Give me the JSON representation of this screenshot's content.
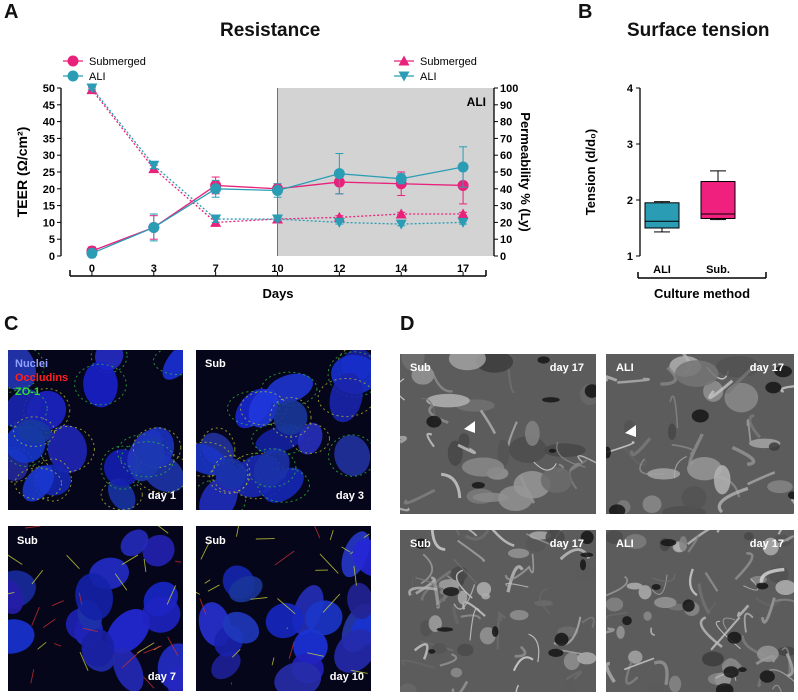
{
  "panels": {
    "A": {
      "letter": "A",
      "title": "Resistance"
    },
    "B": {
      "letter": "B",
      "title": "Surface tension"
    },
    "C": {
      "letter": "C"
    },
    "D": {
      "letter": "D"
    }
  },
  "chart_data": [
    {
      "type": "line",
      "title": "Resistance",
      "xlabel": "Days",
      "ylabel": "TEER (Ω/cm²)",
      "ylabel_right": "Permeability % (Ly)",
      "categories": [
        "0",
        "3",
        "7",
        "10",
        "12",
        "14",
        "17"
      ],
      "ylim": [
        0,
        50
      ],
      "ylim_right": [
        0,
        100
      ],
      "yticks": [
        0,
        5,
        10,
        15,
        20,
        25,
        30,
        35,
        40,
        45,
        50
      ],
      "yticks_right": [
        0,
        10,
        20,
        30,
        40,
        50,
        60,
        70,
        80,
        90,
        100
      ],
      "shaded_region": {
        "from": "10",
        "to": "17",
        "label": "ALI",
        "color": "#d3d3d3"
      },
      "series": [
        {
          "name": "Submerged",
          "axis": "left",
          "marker": "circle",
          "line": "solid",
          "color": "#e8217a",
          "values": [
            1.5,
            8.5,
            21,
            20,
            22,
            21.5,
            21
          ],
          "errors": [
            1.2,
            3.5,
            2.5,
            1.5,
            3.5,
            3.5,
            5.5
          ]
        },
        {
          "name": "ALI",
          "axis": "left",
          "marker": "circle",
          "line": "solid",
          "color": "#2a9db5",
          "values": [
            0.8,
            8.5,
            20,
            19.5,
            24.5,
            23,
            26.5
          ],
          "errors": [
            1,
            4,
            2.5,
            2,
            6,
            1.5,
            6
          ]
        },
        {
          "name": "Submerged",
          "axis": "right",
          "marker": "triangle-up",
          "line": "dotted",
          "color": "#e8217a",
          "values": [
            99,
            52,
            20,
            22,
            23,
            25,
            25
          ],
          "errors": [
            1,
            2,
            2,
            1,
            1,
            1,
            1
          ]
        },
        {
          "name": "ALI",
          "axis": "right",
          "marker": "triangle-down",
          "line": "dotted",
          "color": "#2a9db5",
          "values": [
            100,
            54,
            22,
            22,
            20,
            19,
            20
          ],
          "errors": [
            1,
            2,
            2,
            1,
            1,
            1,
            1
          ]
        }
      ]
    },
    {
      "type": "box",
      "title": "Surface tension",
      "xlabel": "Culture method",
      "ylabel": "Tension (d/d₀)",
      "categories": [
        "ALI",
        "Sub."
      ],
      "ylim": [
        1,
        4
      ],
      "yticks": [
        1,
        2,
        3,
        4
      ],
      "boxes": [
        {
          "name": "ALI",
          "min": 1.43,
          "q1": 1.5,
          "median": 1.62,
          "q3": 1.95,
          "max": 1.97,
          "color": "#2a9db5"
        },
        {
          "name": "Sub.",
          "min": 1.65,
          "q1": 1.67,
          "median": 1.75,
          "q3": 2.33,
          "max": 2.52,
          "color": "#f0217e"
        }
      ]
    }
  ],
  "legend": {
    "left": [
      {
        "label": "Submerged",
        "marker": "circle",
        "color": "#e8217a"
      },
      {
        "label": "ALI",
        "marker": "circle",
        "color": "#2a9db5"
      }
    ],
    "right": [
      {
        "label": "Submerged",
        "marker": "triangle-up",
        "color": "#e8217a"
      },
      {
        "label": "ALI",
        "marker": "triangle-down",
        "color": "#2a9db5"
      }
    ]
  },
  "micrographs_C": [
    {
      "id": "c1",
      "tag": "",
      "day": "day 1",
      "stain_legend": [
        {
          "text": "Nuclei",
          "color": "#8fa0ff"
        },
        {
          "text": "Occludins",
          "color": "#ff2020"
        },
        {
          "text": "ZO-1",
          "color": "#2ee02e"
        }
      ]
    },
    {
      "id": "c2",
      "tag": "Sub",
      "day": "day 3"
    },
    {
      "id": "c3",
      "tag": "Sub",
      "day": "day 7"
    },
    {
      "id": "c4",
      "tag": "Sub",
      "day": "day 10"
    }
  ],
  "micrographs_D": [
    {
      "id": "d1",
      "tag": "Sub",
      "day": "day 17",
      "arrow": true
    },
    {
      "id": "d2",
      "tag": "ALI",
      "day": "day 17",
      "arrow": true
    },
    {
      "id": "d3",
      "tag": "Sub",
      "day": "day 17",
      "arrow": false
    },
    {
      "id": "d4",
      "tag": "ALI",
      "day": "day 17",
      "arrow": false
    }
  ]
}
